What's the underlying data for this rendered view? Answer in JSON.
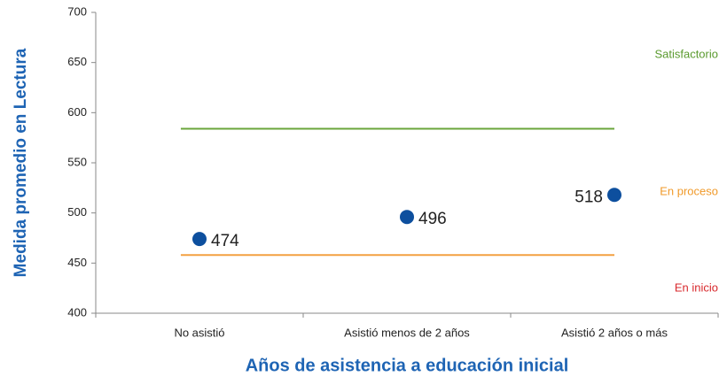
{
  "chart_data": {
    "type": "scatter",
    "xlabel": "Años de asistencia a educación inicial",
    "ylabel": "Medida promedio en Lectura",
    "categories": [
      "No asistió",
      "Asistió menos de 2 años",
      "Asistió 2 años o más"
    ],
    "values": [
      474,
      496,
      518
    ],
    "color": "#0d4f9e",
    "ylim": [
      400,
      700
    ],
    "yticks": [
      400,
      450,
      500,
      550,
      600,
      650,
      700
    ],
    "reference_lines": [
      {
        "value": 584,
        "color": "#6aa53b"
      },
      {
        "value": 458,
        "color": "#f3a041"
      }
    ],
    "levels": [
      {
        "label": "Satisfactorio",
        "color": "#5a9a2e"
      },
      {
        "label": "En proceso",
        "color": "#f09a2a"
      },
      {
        "label": "En inicio",
        "color": "#d8282c"
      }
    ]
  }
}
